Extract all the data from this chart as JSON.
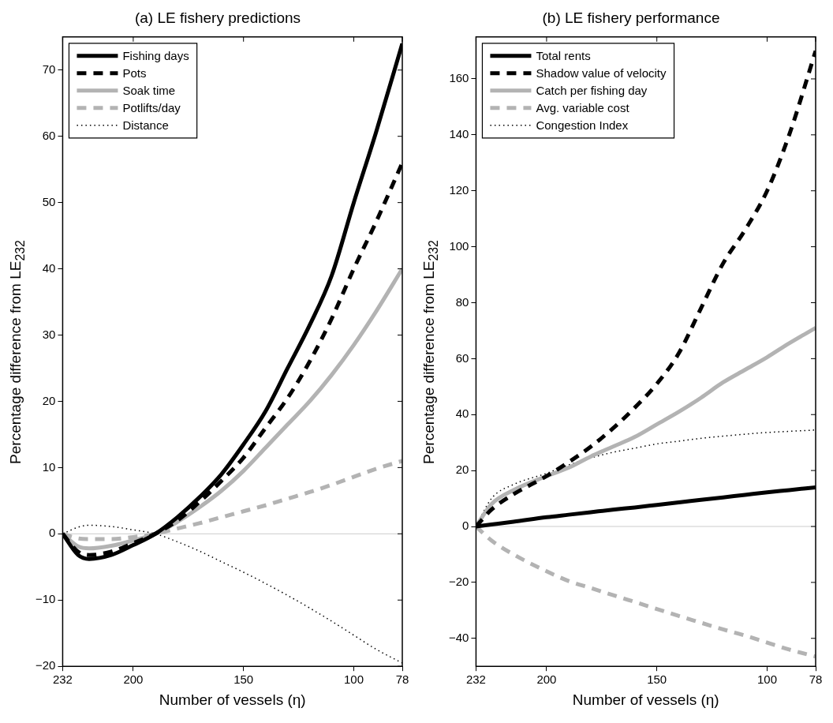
{
  "chart_data": [
    {
      "type": "line",
      "title": "(a) LE fishery predictions",
      "xlabel": "Number of vessels (η)",
      "ylabel": "Percentage difference from LE$_{232}$",
      "x": [
        232,
        225,
        220,
        210,
        200,
        190,
        180,
        170,
        160,
        150,
        140,
        130,
        120,
        110,
        100,
        90,
        78
      ],
      "series": [
        {
          "name": "Fishing days",
          "color": "#000000",
          "line_style": "solid",
          "values": [
            0,
            -3.2,
            -3.8,
            -3.2,
            -1.7,
            0,
            2.5,
            5.5,
            9,
            13.5,
            18.5,
            25,
            31.5,
            39,
            50,
            60.5,
            74
          ]
        },
        {
          "name": "Pots",
          "color": "#000000",
          "line_style": "dashed",
          "values": [
            0,
            -2.7,
            -3.2,
            -2.7,
            -1.4,
            0,
            2,
            4.8,
            8,
            11.5,
            16,
            20.5,
            26,
            32.5,
            40,
            47,
            56
          ]
        },
        {
          "name": "Soak time",
          "color": "#b3b3b3",
          "line_style": "solid",
          "values": [
            0,
            -1.9,
            -2.2,
            -1.8,
            -1,
            0,
            1.8,
            4,
            6.5,
            9.5,
            13,
            16.5,
            20,
            24,
            28.5,
            33.5,
            40
          ]
        },
        {
          "name": "Potlifts/day",
          "color": "#b3b3b3",
          "line_style": "dashed",
          "values": [
            0,
            -0.7,
            -0.8,
            -0.8,
            -0.5,
            0,
            0.8,
            1.6,
            2.5,
            3.4,
            4.3,
            5.3,
            6.3,
            7.4,
            8.6,
            9.8,
            11
          ]
        },
        {
          "name": "Distance",
          "color": "#000000",
          "line_style": "dotted",
          "values": [
            0,
            1,
            1.3,
            1.1,
            0.6,
            0,
            -1.2,
            -2.6,
            -4.2,
            -5.8,
            -7.5,
            -9.3,
            -11.2,
            -13.2,
            -15.3,
            -17.4,
            -19.5
          ]
        }
      ],
      "xlim": [
        232,
        78
      ],
      "xticks": [
        232,
        200,
        150,
        100,
        78
      ],
      "ylim": [
        -20,
        75
      ],
      "yticks": [
        -20,
        -10,
        0,
        10,
        20,
        30,
        40,
        50,
        60,
        70
      ],
      "ref_lines": [
        {
          "axis": "y",
          "value": 0,
          "color": "#cccccc"
        }
      ],
      "legend": "top left",
      "grid": false
    },
    {
      "type": "line",
      "title": "(b) LE fishery performance",
      "xlabel": "Number of vessels (η)",
      "ylabel": "Percentage difference from LE$_{232}$",
      "x": [
        232,
        225,
        215,
        200,
        190,
        180,
        170,
        160,
        150,
        140,
        130,
        120,
        110,
        100,
        90,
        78
      ],
      "series": [
        {
          "name": "Total rents",
          "color": "#000000",
          "line_style": "solid",
          "values": [
            0,
            0.7,
            1.7,
            3.3,
            4.2,
            5.1,
            6,
            6.8,
            7.7,
            8.6,
            9.5,
            10.4,
            11.3,
            12.2,
            13,
            14
          ]
        },
        {
          "name": "Shadow value of velocity",
          "color": "#000000",
          "line_style": "dashed",
          "values": [
            0,
            6,
            11.5,
            18,
            23,
            28.5,
            35,
            42.5,
            51,
            62,
            78,
            94,
            106,
            120,
            140,
            170
          ]
        },
        {
          "name": "Catch per fishing day",
          "color": "#b3b3b3",
          "line_style": "solid",
          "values": [
            0,
            8,
            13,
            18,
            21,
            25,
            28.5,
            32,
            36.5,
            41,
            46,
            51.5,
            56,
            60.5,
            65.5,
            71
          ]
        },
        {
          "name": "Avg. variable cost",
          "color": "#b3b3b3",
          "line_style": "dashed",
          "values": [
            0,
            -5,
            -10,
            -16,
            -19.5,
            -22,
            -24.5,
            -27,
            -29.5,
            -32,
            -34.4,
            -36.8,
            -39,
            -41.5,
            -44,
            -46.5
          ]
        },
        {
          "name": "Congestion Index",
          "color": "#000000",
          "line_style": "dotted",
          "values": [
            0,
            10,
            15,
            19,
            22,
            24.5,
            26.5,
            28,
            29.5,
            30.5,
            31.5,
            32.3,
            33,
            33.6,
            34,
            34.5
          ]
        }
      ],
      "xlim": [
        232,
        78
      ],
      "xticks": [
        232,
        200,
        150,
        100,
        78
      ],
      "ylim": [
        -50,
        175
      ],
      "yticks": [
        -40,
        -20,
        0,
        20,
        40,
        60,
        80,
        100,
        120,
        140,
        160
      ],
      "ref_lines": [
        {
          "axis": "y",
          "value": 0,
          "color": "#cccccc"
        }
      ],
      "legend": "top left",
      "grid": false
    }
  ]
}
